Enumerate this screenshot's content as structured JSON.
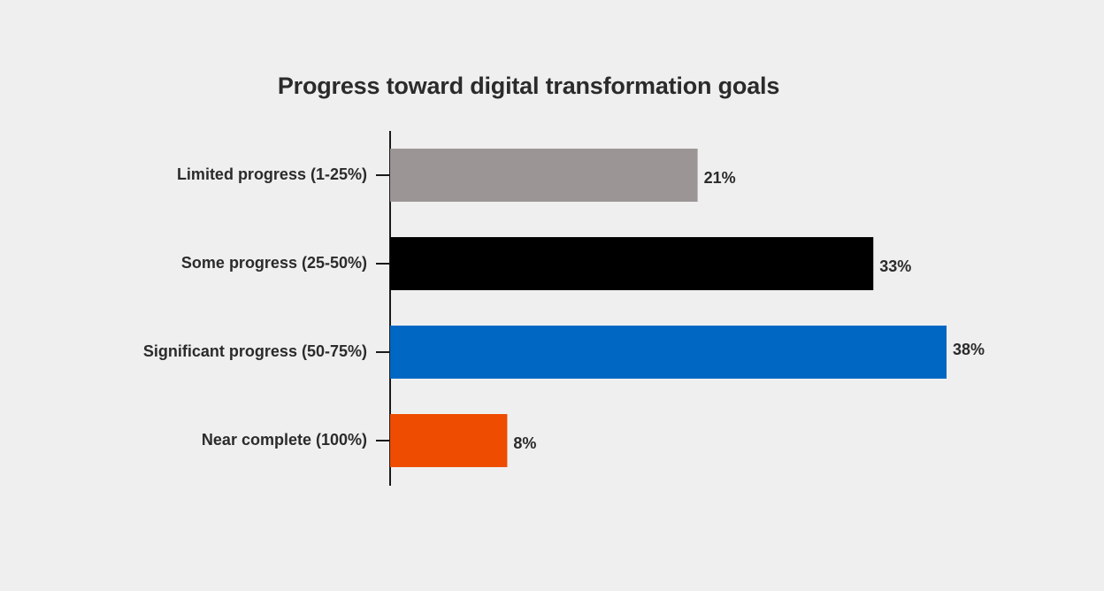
{
  "chart_data": {
    "type": "bar",
    "orientation": "horizontal",
    "title": "Progress toward digital transformation goals",
    "categories": [
      "Limited progress (1-25%)",
      "Some progress (25-50%)",
      "Significant progress (50-75%)",
      "Near complete (100%)"
    ],
    "values": [
      21,
      33,
      38,
      8
    ],
    "value_labels": [
      "21%",
      "33%",
      "38%",
      "8%"
    ],
    "colors": [
      "#9b9695",
      "#000000",
      "#0068c3",
      "#ee4c00"
    ],
    "xlim": [
      0,
      38
    ],
    "grid": false,
    "legend": "none"
  }
}
